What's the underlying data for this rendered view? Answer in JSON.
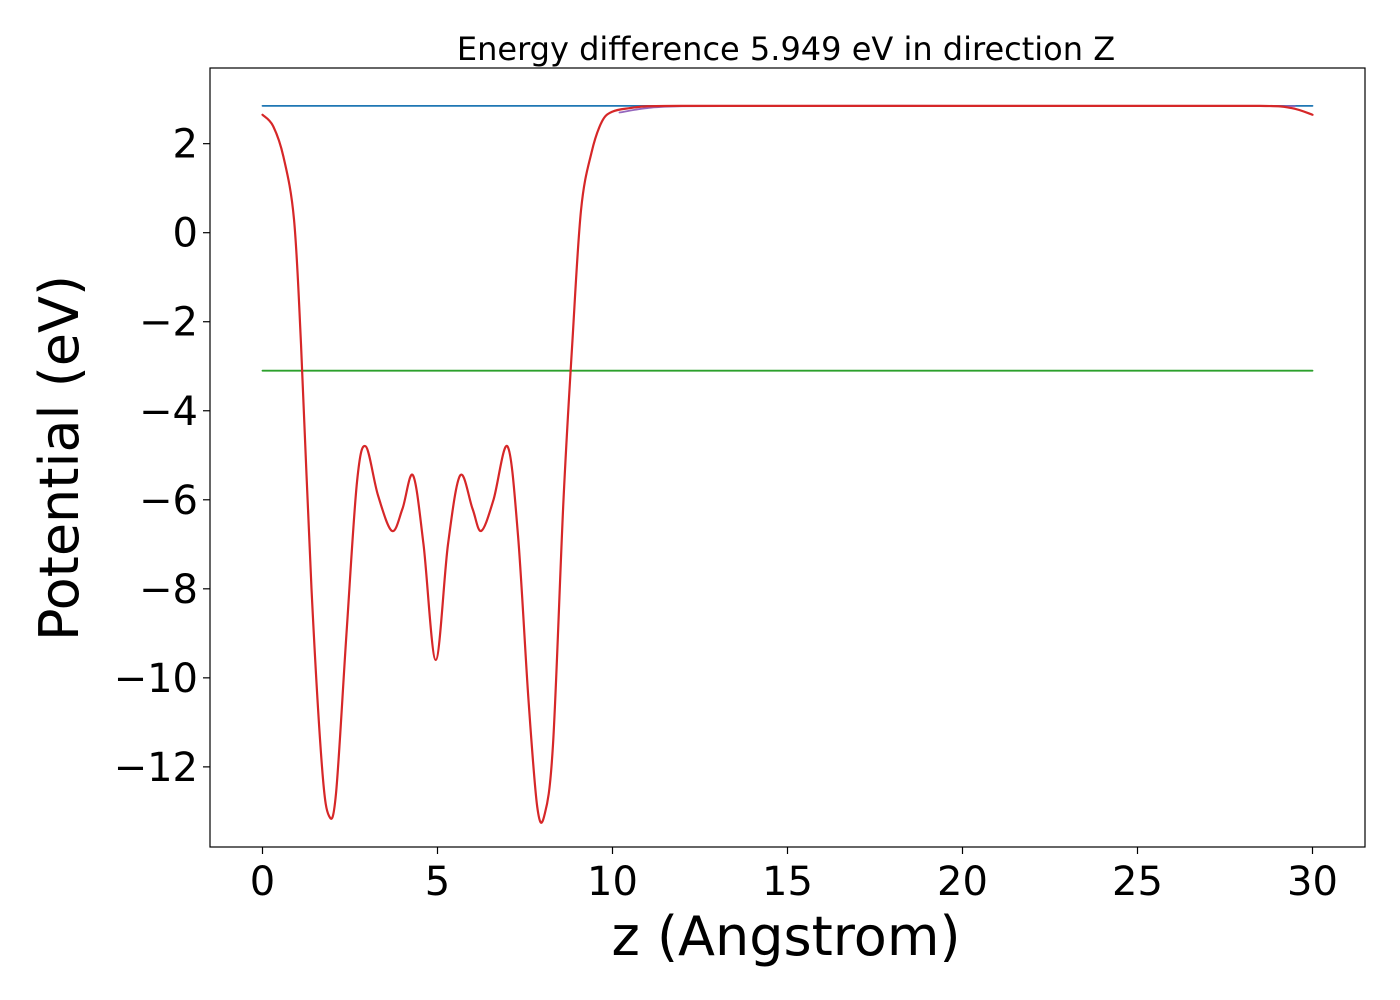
{
  "chart_data": {
    "type": "line",
    "title": "Energy difference 5.949 eV in direction Z",
    "xlabel": "z (Angstrom)",
    "ylabel": "Potential (eV)",
    "xlim": [
      -1.5,
      31.5
    ],
    "ylim": [
      -13.8,
      3.7
    ],
    "xticks": [
      0,
      5,
      10,
      15,
      20,
      25,
      30
    ],
    "xtick_labels": [
      "0",
      "5",
      "10",
      "15",
      "20",
      "25",
      "30"
    ],
    "yticks": [
      2,
      0,
      -2,
      -4,
      -6,
      -8,
      -10,
      -12
    ],
    "ytick_labels": [
      "2",
      "0",
      "−2",
      "−4",
      "−6",
      "−8",
      "−10",
      "−12"
    ],
    "grid": false,
    "legend": false,
    "series": [
      {
        "color": "#1f77b4",
        "x": [
          0,
          30
        ],
        "y": [
          2.85,
          2.85
        ]
      },
      {
        "color": "#2ca02c",
        "x": [
          0,
          30
        ],
        "y": [
          -3.1,
          -3.1
        ]
      },
      {
        "color": "#9467bd",
        "x": [
          10.2,
          11,
          12,
          15,
          20,
          25,
          28,
          29.5
        ],
        "y": [
          2.7,
          2.8,
          2.84,
          2.85,
          2.85,
          2.85,
          2.85,
          2.84
        ]
      },
      {
        "color": "#d62728",
        "x": [
          0,
          0.3,
          0.6,
          0.9,
          1.1,
          1.4,
          1.7,
          1.9,
          2.1,
          2.4,
          2.7,
          2.95,
          3.3,
          3.7,
          4.0,
          4.3,
          4.6,
          4.95,
          5.3,
          5.65,
          6.0,
          6.25,
          6.6,
          7.0,
          7.3,
          7.6,
          7.85,
          8.05,
          8.3,
          8.6,
          8.85,
          9.1,
          9.4,
          9.7,
          10.0,
          10.5,
          11.0,
          12.0,
          15.0,
          20.0,
          25.0,
          28.5,
          29.4,
          30.0
        ],
        "y": [
          2.65,
          2.4,
          1.7,
          0.3,
          -2.5,
          -8.0,
          -12.0,
          -13.1,
          -12.6,
          -9.0,
          -5.6,
          -4.8,
          -5.9,
          -6.7,
          -6.2,
          -5.45,
          -7.0,
          -9.6,
          -7.0,
          -5.45,
          -6.2,
          -6.7,
          -6.0,
          -4.8,
          -6.8,
          -10.5,
          -12.9,
          -13.1,
          -11.5,
          -6.0,
          -2.5,
          0.5,
          1.8,
          2.5,
          2.72,
          2.8,
          2.84,
          2.85,
          2.85,
          2.85,
          2.85,
          2.85,
          2.8,
          2.65
        ]
      }
    ]
  }
}
